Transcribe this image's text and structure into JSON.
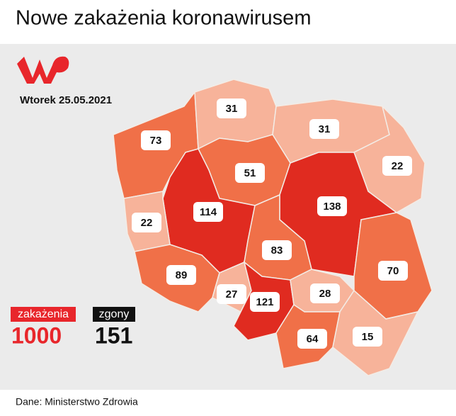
{
  "header": {
    "title": "Nowe zakażenia koronawirusem"
  },
  "date": "Wtorek 25.05.2021",
  "regions": [
    {
      "value": 73,
      "color": "#f07048"
    },
    {
      "value": 31,
      "color": "#f7b39a"
    },
    {
      "value": 31,
      "color": "#f7b39a"
    },
    {
      "value": 22,
      "color": "#f7b39a"
    },
    {
      "value": 51,
      "color": "#f07048"
    },
    {
      "value": 114,
      "color": "#e02b20"
    },
    {
      "value": 22,
      "color": "#f7b39a"
    },
    {
      "value": 138,
      "color": "#e02b20"
    },
    {
      "value": 83,
      "color": "#f07048"
    },
    {
      "value": 89,
      "color": "#f07048"
    },
    {
      "value": 27,
      "color": "#f7b39a"
    },
    {
      "value": 121,
      "color": "#e02b20"
    },
    {
      "value": 28,
      "color": "#f7b39a"
    },
    {
      "value": 70,
      "color": "#f07048"
    },
    {
      "value": 64,
      "color": "#f07048"
    },
    {
      "value": 15,
      "color": "#f7b39a"
    }
  ],
  "legend": {
    "cases_label": "zakażenia",
    "cases_total": 1000,
    "deaths_label": "zgony",
    "deaths_total": 151
  },
  "source": "Dane: Ministerstwo Zdrowia"
}
